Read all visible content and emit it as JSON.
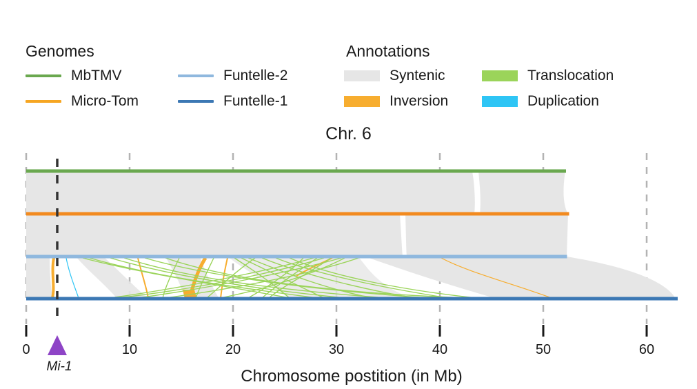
{
  "legend": {
    "genomes_title": "Genomes",
    "annotations_title": "Annotations",
    "genomes": [
      {
        "label": "MbTMV",
        "color": "#6aa84f"
      },
      {
        "label": "Micro-Tom",
        "color": "#f6a623"
      },
      {
        "label": "Funtelle-2",
        "color": "#8fb8de"
      },
      {
        "label": "Funtelle-1",
        "color": "#3c78b4"
      }
    ],
    "annotations": [
      {
        "label": "Syntenic",
        "color": "#e6e6e6"
      },
      {
        "label": "Translocation",
        "color": "#9bd45a"
      },
      {
        "label": "Inversion",
        "color": "#f7ad2f"
      },
      {
        "label": "Duplication",
        "color": "#2ec5f5"
      }
    ]
  },
  "chart_data": {
    "type": "synteny",
    "title": "Chr. 6",
    "xlabel": "Chromosome postition (in Mb)",
    "xlim": [
      0,
      63
    ],
    "ticks": [
      0,
      10,
      20,
      30,
      40,
      50,
      60
    ],
    "tick_labels": [
      "0",
      "10",
      "20",
      "30",
      "40",
      "50",
      "60"
    ],
    "marker": {
      "label": "Mi-1",
      "position": 3,
      "color": "#8e44c6"
    },
    "tracks": [
      {
        "name": "MbTMV",
        "length": 52.2,
        "color": "#6aa84f"
      },
      {
        "name": "Micro-Tom",
        "length": 52.5,
        "color": "#f28a1f"
      },
      {
        "name": "Funtelle-2",
        "length": 52.3,
        "color": "#8fb8de"
      },
      {
        "name": "Funtelle-1",
        "length": 63,
        "color": "#3c78b4"
      }
    ]
  }
}
